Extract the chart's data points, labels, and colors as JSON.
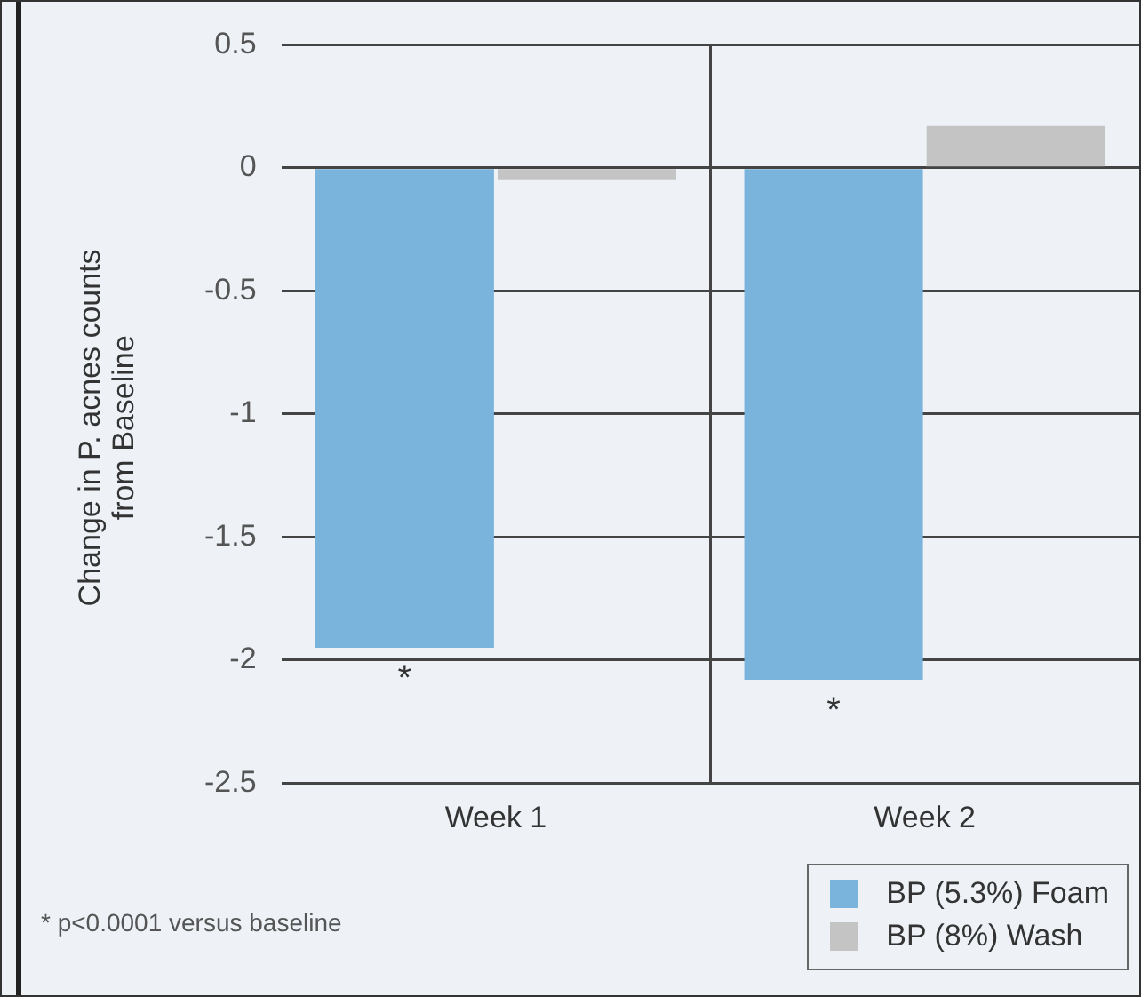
{
  "chart_data": {
    "type": "bar",
    "ylabel": "Change in P. acnes counts from Baseline",
    "categories": [
      "Week 1",
      "Week 2"
    ],
    "series": [
      {
        "name": "BP (5.3%) Foam",
        "color": "#7ab3dc",
        "values": [
          -1.95,
          -2.08
        ]
      },
      {
        "name": "BP (8%) Wash",
        "color": "#c4c4c4",
        "values": [
          -0.05,
          0.17
        ]
      }
    ],
    "ylim": [
      -2.5,
      0.5
    ],
    "yticks": [
      0.5,
      0,
      -0.5,
      -1,
      -1.5,
      -2,
      -2.5
    ],
    "grid": true,
    "legend": "bottom right",
    "annotations": [
      {
        "text": "*",
        "x": "Week 1",
        "y": -1.95
      },
      {
        "text": "*",
        "x": "Week 2",
        "y": -2.08
      },
      "* p<0.0001 versus baseline"
    ]
  }
}
